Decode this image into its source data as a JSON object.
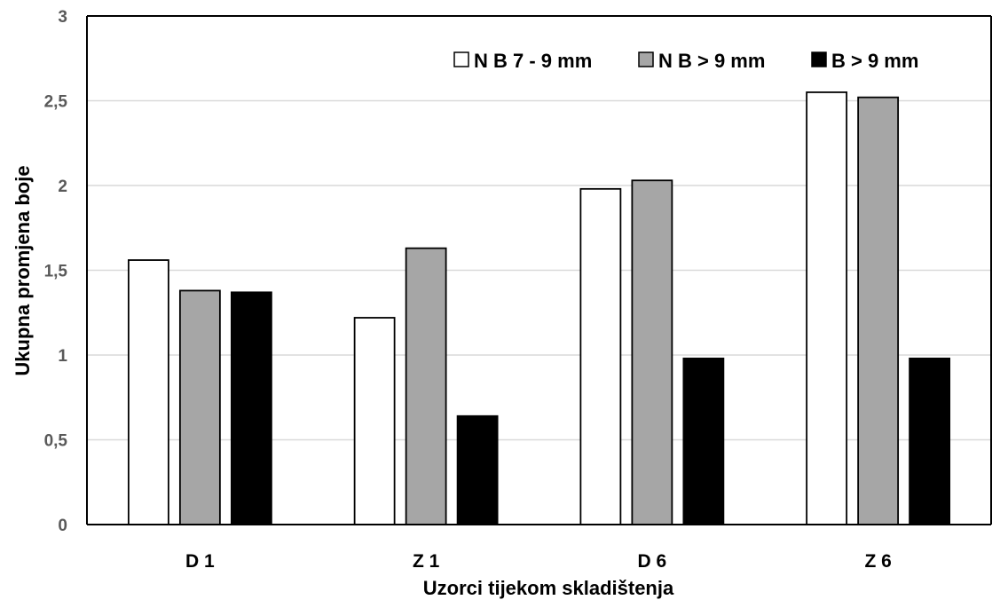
{
  "chart_data": {
    "type": "bar",
    "title": "",
    "xlabel": "Uzorci tijekom skladištenja",
    "ylabel": "Ukupna promjena boje",
    "categories": [
      "D 1",
      "Z 1",
      "D 6",
      "Z 6"
    ],
    "series": [
      {
        "name": "N B 7 - 9 mm",
        "values": [
          1.56,
          1.22,
          1.98,
          2.55
        ],
        "color": "#ffffff"
      },
      {
        "name": "N B > 9 mm",
        "values": [
          1.38,
          1.63,
          2.03,
          2.52
        ],
        "color": "#a6a6a6"
      },
      {
        "name": "B > 9 mm",
        "values": [
          1.37,
          0.64,
          0.98,
          0.98
        ],
        "color": "#000000"
      }
    ],
    "ylim": [
      0,
      3
    ],
    "yticks": [
      0,
      0.5,
      1,
      1.5,
      2,
      2.5,
      3
    ],
    "ytick_labels": [
      "0",
      "0,5",
      "1",
      "1,5",
      "2",
      "2,5",
      "3"
    ],
    "grid": true,
    "legend_position": "top-right"
  }
}
